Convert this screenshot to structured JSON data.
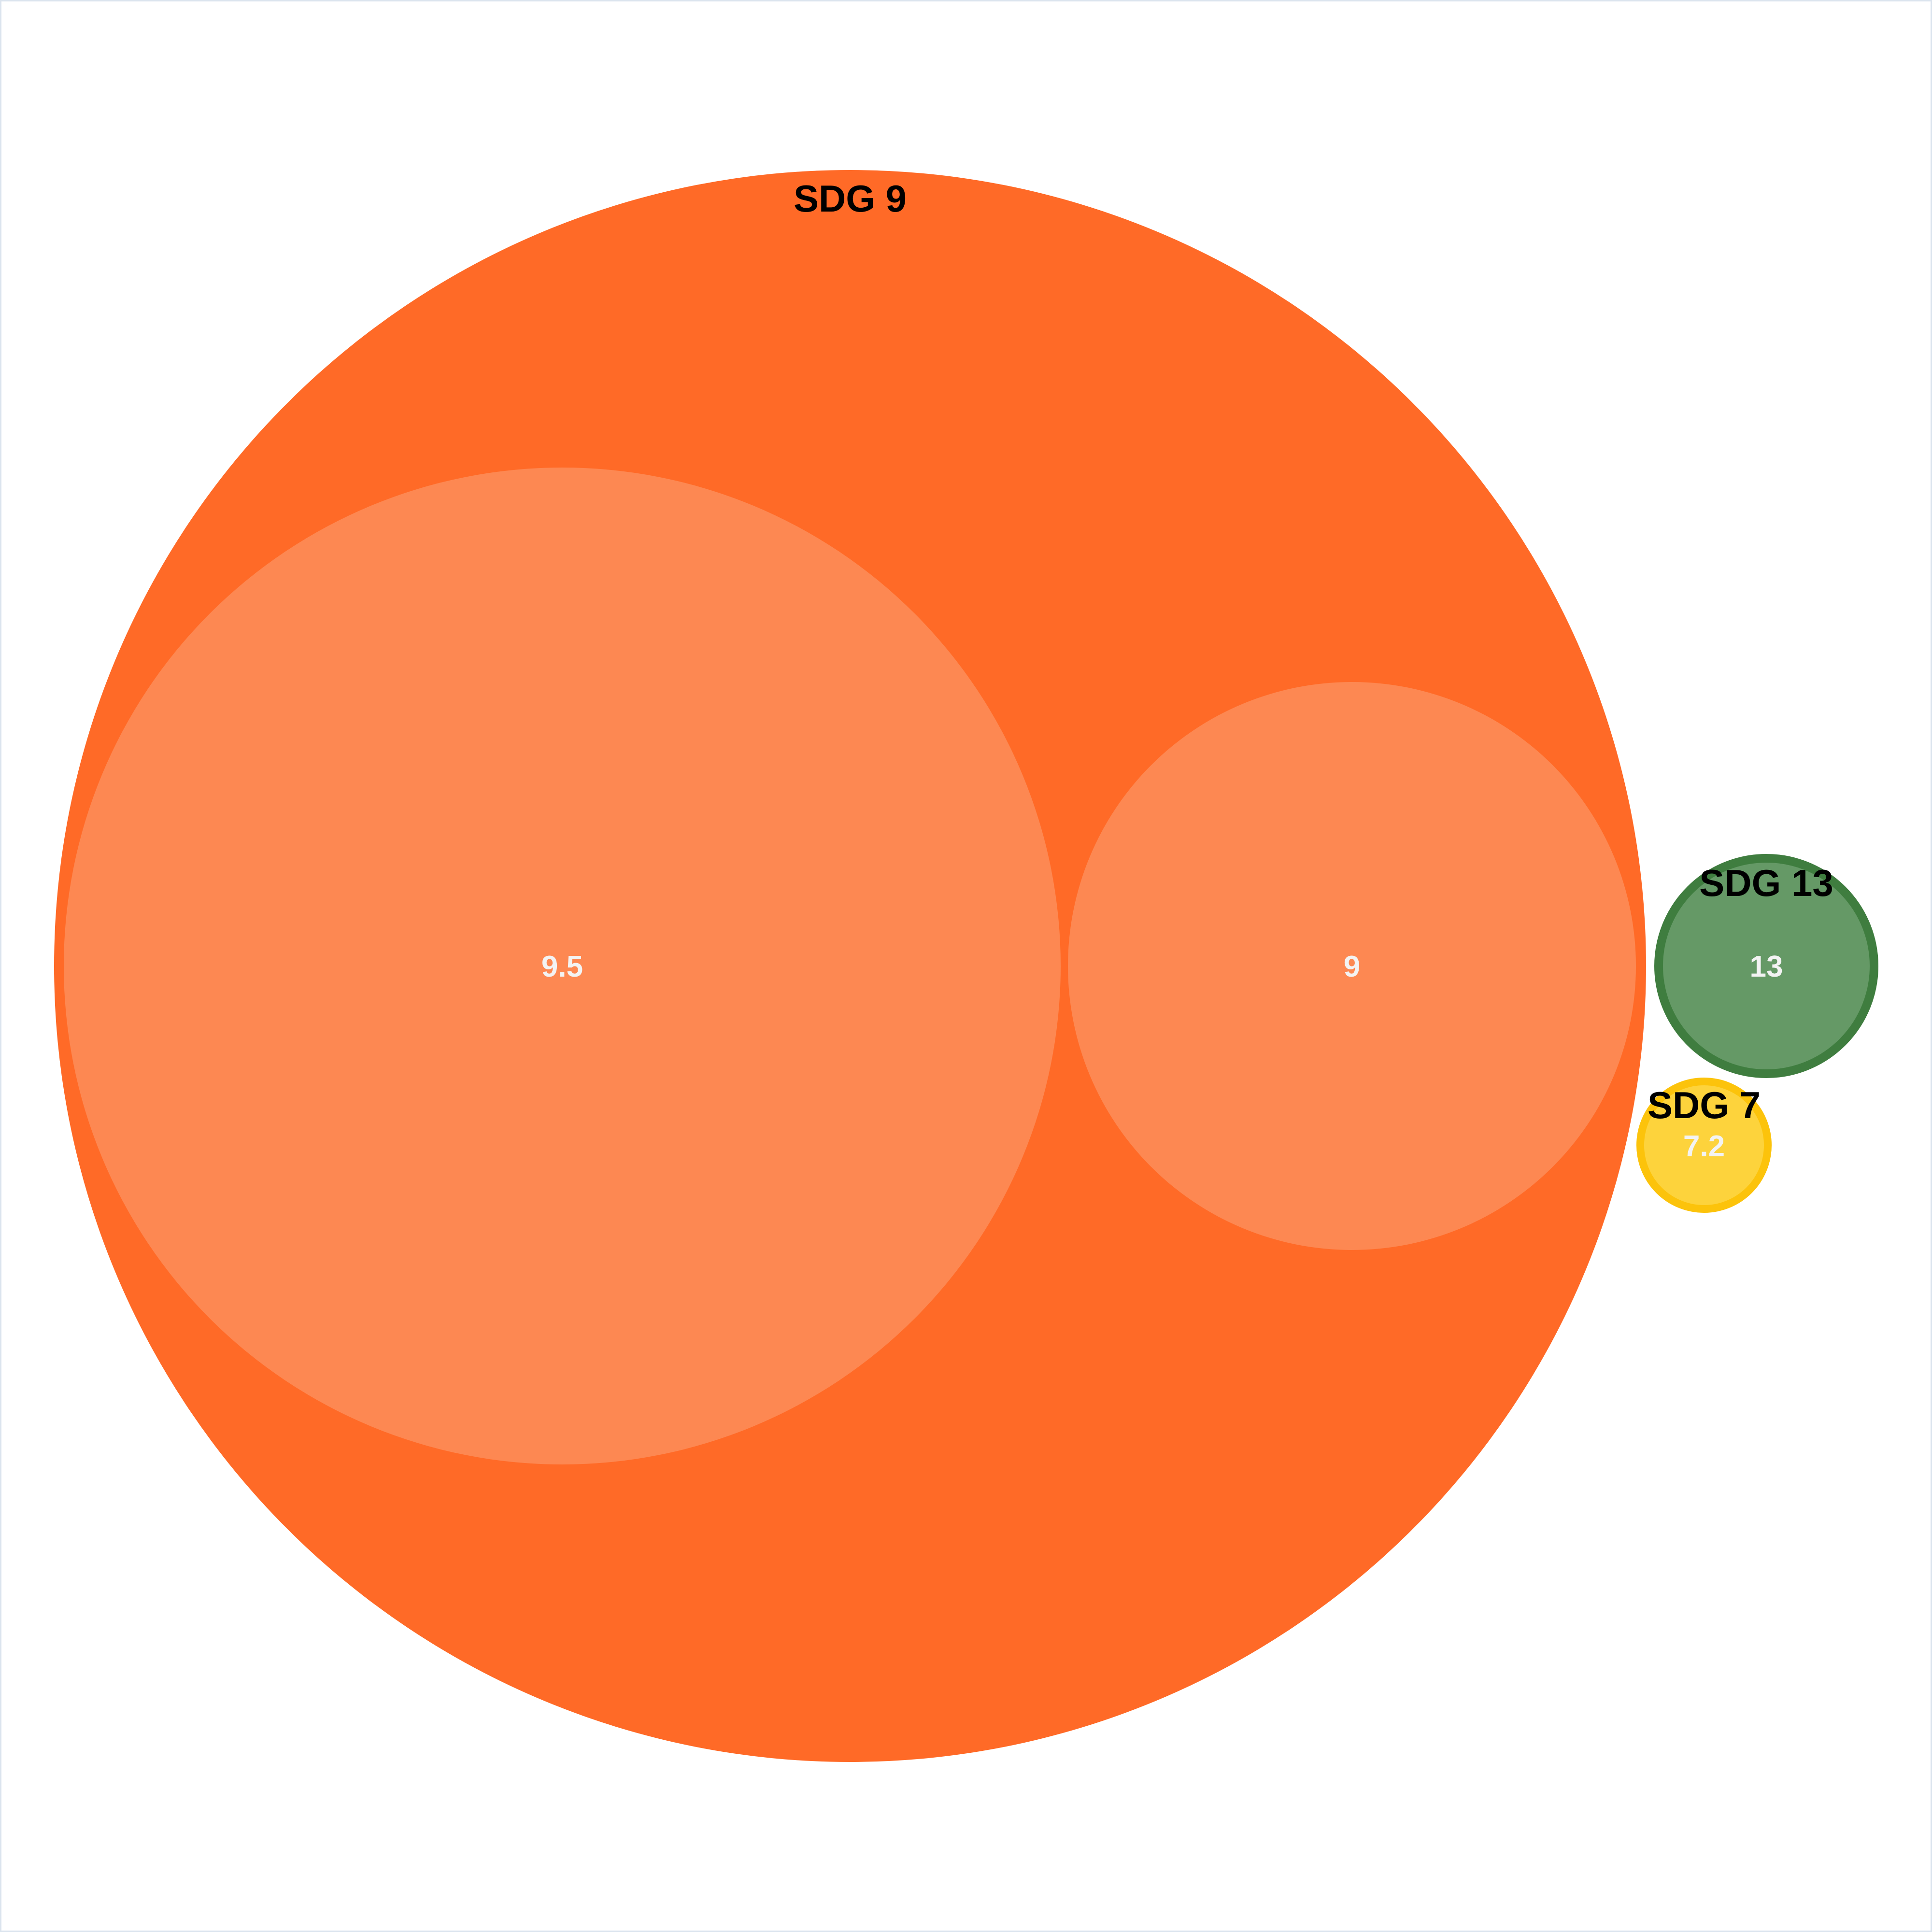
{
  "chart_data": {
    "type": "circle-packing",
    "title": "",
    "groups": [
      {
        "label": "SDG 9",
        "color": "#ff6a27",
        "child_color": "#fd8852",
        "children": [
          {
            "label": "9.5",
            "value": 9.5
          },
          {
            "label": "9",
            "value": 9
          }
        ]
      },
      {
        "label": "SDG 13",
        "color": "#3f7d3f",
        "child_color": "#659966",
        "children": [
          {
            "label": "13",
            "value": 13
          }
        ]
      },
      {
        "label": "SDG 7",
        "color": "#fcc30b",
        "child_color": "#fdd33c",
        "children": [
          {
            "label": "7.2",
            "value": 7.2
          }
        ]
      }
    ]
  }
}
